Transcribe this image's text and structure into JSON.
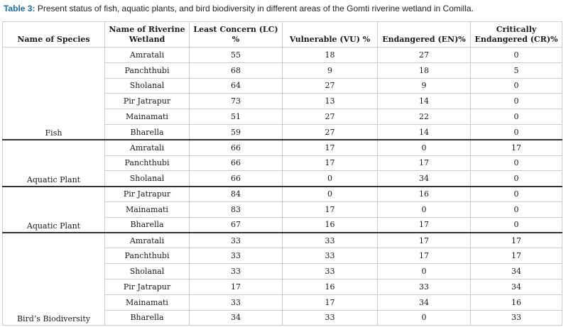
{
  "caption": {
    "label": "Table 3:",
    "text": "Present status of fish, aquatic plants, and bird biodiversity in different areas of the Gomti riverine wetland in Comilla."
  },
  "header": {
    "species": "Name of Species",
    "wetland_line1": "Name of Riverine",
    "wetland_line2": "Wetland",
    "lc_line1": "Least Concern (LC)",
    "lc_line2": "%",
    "vu": "Vulnerable (VU) %",
    "en": "Endangered (EN)%",
    "cr_line1": "Critically",
    "cr_line2": "Endangered (CR)%"
  },
  "groups": [
    {
      "species": "Fish",
      "rows": [
        {
          "wetland": "Amratali",
          "lc": "55",
          "vu": "18",
          "en": "27",
          "cr": "0"
        },
        {
          "wetland": "Panchthubi",
          "lc": "68",
          "vu": "9",
          "en": "18",
          "cr": "5"
        },
        {
          "wetland": "Sholanal",
          "lc": "64",
          "vu": "27",
          "en": "9",
          "cr": "0"
        },
        {
          "wetland": "Pir Jatrapur",
          "lc": "73",
          "vu": "13",
          "en": "14",
          "cr": "0"
        },
        {
          "wetland": "Mainamati",
          "lc": "51",
          "vu": "27",
          "en": "22",
          "cr": "0"
        },
        {
          "wetland": "Bharella",
          "lc": "59",
          "vu": "27",
          "en": "14",
          "cr": "0"
        }
      ]
    },
    {
      "species": "Aquatic Plant",
      "rows": [
        {
          "wetland": "Amratali",
          "lc": "66",
          "vu": "17",
          "en": "0",
          "cr": "17"
        },
        {
          "wetland": "Panchthubi",
          "lc": "66",
          "vu": "17",
          "en": "17",
          "cr": "0"
        },
        {
          "wetland": "Sholanal",
          "lc": "66",
          "vu": "0",
          "en": "34",
          "cr": "0"
        }
      ]
    },
    {
      "species": "Aquatic Plant",
      "rows": [
        {
          "wetland": "Pir Jatrapur",
          "lc": "84",
          "vu": "0",
          "en": "16",
          "cr": "0"
        },
        {
          "wetland": "Mainamati",
          "lc": "83",
          "vu": "17",
          "en": "0",
          "cr": "0"
        },
        {
          "wetland": "Bharella",
          "lc": "67",
          "vu": "16",
          "en": "17",
          "cr": "0"
        }
      ]
    },
    {
      "species": "Bird’s Biodiversity",
      "rows": [
        {
          "wetland": "Amratali",
          "lc": "33",
          "vu": "33",
          "en": "17",
          "cr": "17"
        },
        {
          "wetland": "Panchthubi",
          "lc": "33",
          "vu": "33",
          "en": "17",
          "cr": "17"
        },
        {
          "wetland": "Sholanal",
          "lc": "33",
          "vu": "33",
          "en": "0",
          "cr": "34"
        },
        {
          "wetland": "Pir Jatrapur",
          "lc": "17",
          "vu": "16",
          "en": "33",
          "cr": "34"
        },
        {
          "wetland": "Mainamati",
          "lc": "33",
          "vu": "17",
          "en": "34",
          "cr": "16"
        },
        {
          "wetland": "Bharella",
          "lc": "34",
          "vu": "33",
          "en": "0",
          "cr": "33"
        }
      ]
    }
  ]
}
